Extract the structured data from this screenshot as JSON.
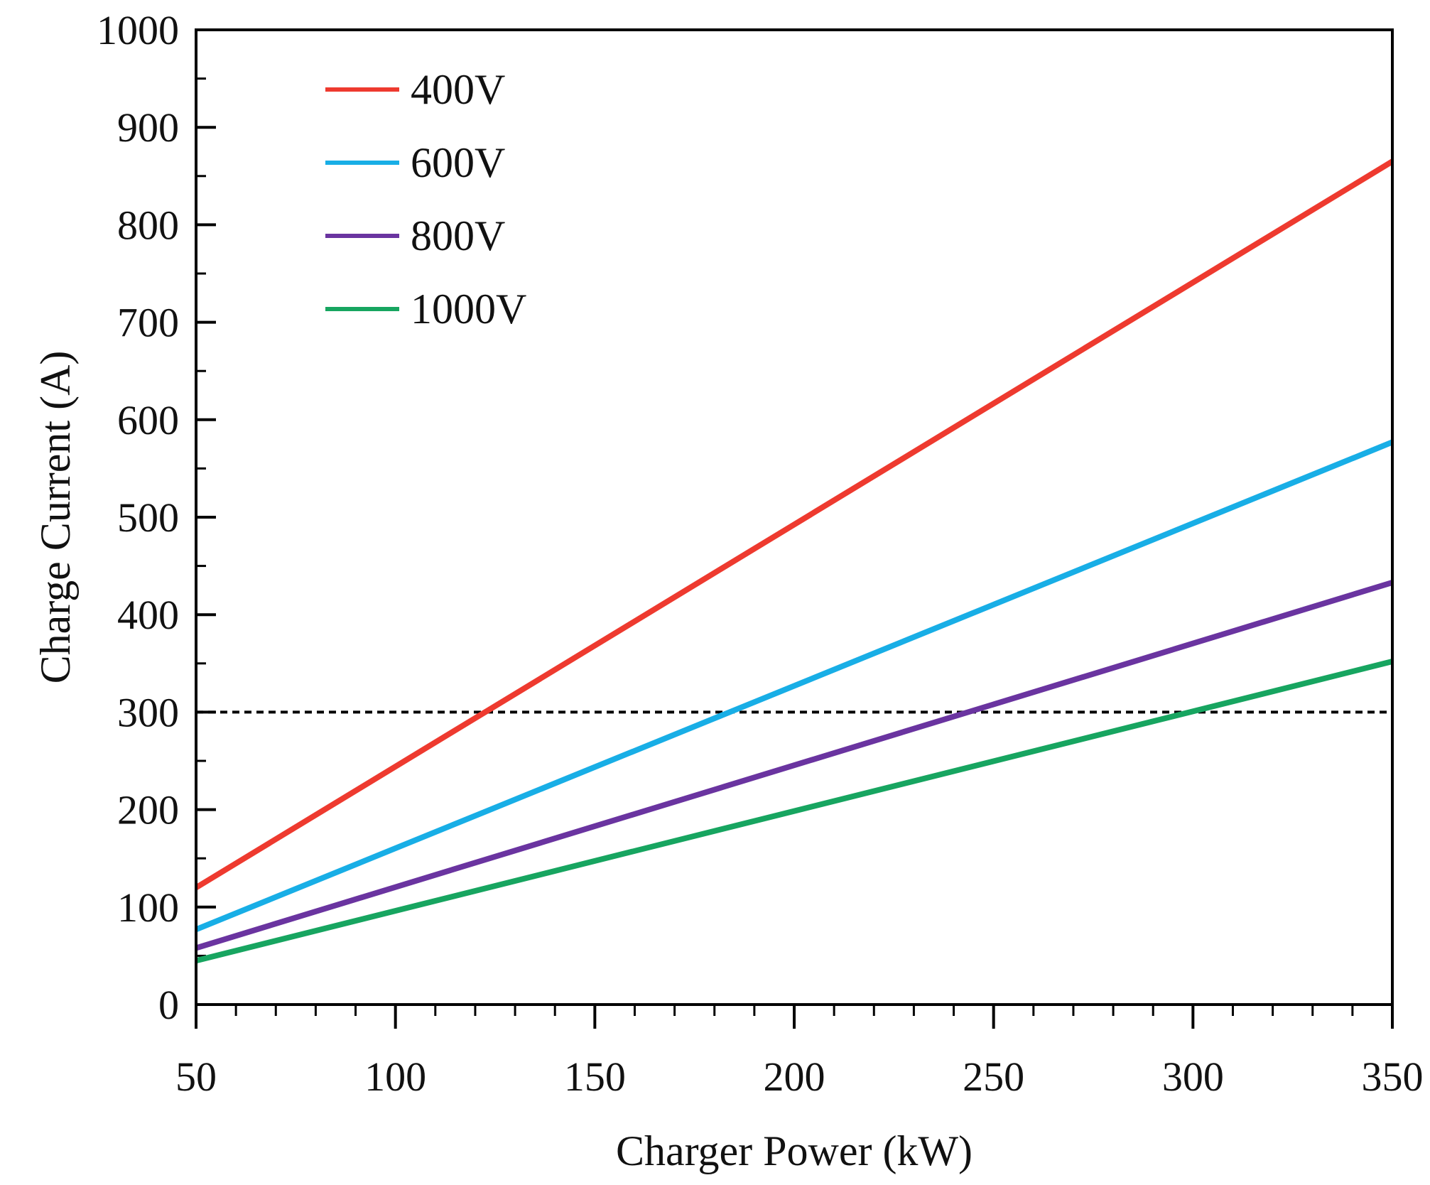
{
  "chart_data": {
    "type": "line",
    "xlabel": "Charger Power (kW)",
    "ylabel": "Charge Current (A)",
    "xlim": [
      50,
      350
    ],
    "ylim": [
      0,
      1000
    ],
    "x_ticks": [
      50,
      100,
      150,
      200,
      250,
      300,
      350
    ],
    "x_minor_step": 10,
    "y_ticks": [
      0,
      100,
      200,
      300,
      400,
      500,
      600,
      700,
      800,
      900,
      1000
    ],
    "y_minor_step": 50,
    "grid": false,
    "legend": "top-left",
    "x": [
      50,
      350
    ],
    "series": [
      {
        "name": "400V",
        "color": "#ee3a2f",
        "values": [
          120,
          865
        ]
      },
      {
        "name": "600V",
        "color": "#18aee6",
        "values": [
          77,
          577
        ]
      },
      {
        "name": "800V",
        "color": "#6a34a0",
        "values": [
          58,
          433
        ]
      },
      {
        "name": "1000V",
        "color": "#17a560",
        "values": [
          45,
          352
        ]
      }
    ],
    "reference_line": {
      "y": 300,
      "style": "dashed",
      "color": "#000000"
    }
  }
}
